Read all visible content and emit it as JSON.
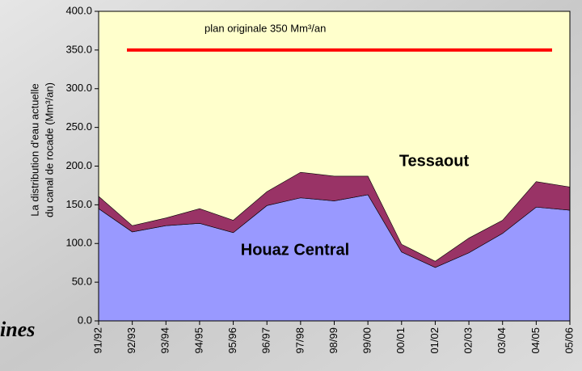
{
  "chart_data": {
    "type": "stacked_area",
    "annotation": "plan originale 350 Mm³/an",
    "plan_value": 350,
    "plan_color": "#ff0000",
    "y_label": [
      "La distribution d'eau actuelle",
      "du canal de rocade (Mm³/an)"
    ],
    "background_text": "ines",
    "area_labels": [
      "Tessaout",
      "Houaz Central"
    ],
    "categories": [
      "91/92",
      "92/93",
      "93/94",
      "94/95",
      "95/96",
      "96/97",
      "97/98",
      "98/99",
      "99/00",
      "00/01",
      "01/02",
      "02/03",
      "03/04",
      "04/05",
      "05/06"
    ],
    "series": [
      {
        "name": "Houaz Central",
        "color": "#9999ff",
        "values": [
          145,
          115,
          123,
          126,
          114,
          149,
          159,
          155,
          163,
          89,
          69,
          88,
          113,
          147,
          143
        ]
      },
      {
        "name": "Tessaout",
        "color": "#993366",
        "values": [
          16,
          8,
          10,
          19,
          16,
          18,
          33,
          32,
          24,
          10,
          8,
          19,
          17,
          33,
          30
        ]
      }
    ],
    "plot_background": "#ffffcc",
    "ylim": [
      0,
      400
    ],
    "yticks": [
      {
        "value": 0,
        "label": "0.0"
      },
      {
        "value": 50,
        "label": "50.0"
      },
      {
        "value": 100,
        "label": "100.0"
      },
      {
        "value": 150,
        "label": "150.0"
      },
      {
        "value": 200,
        "label": "200.0"
      },
      {
        "value": 250,
        "label": "250.0"
      },
      {
        "value": 300,
        "label": "300.0"
      },
      {
        "value": 350,
        "label": "350.0"
      },
      {
        "value": 400,
        "label": "400.0"
      }
    ]
  }
}
